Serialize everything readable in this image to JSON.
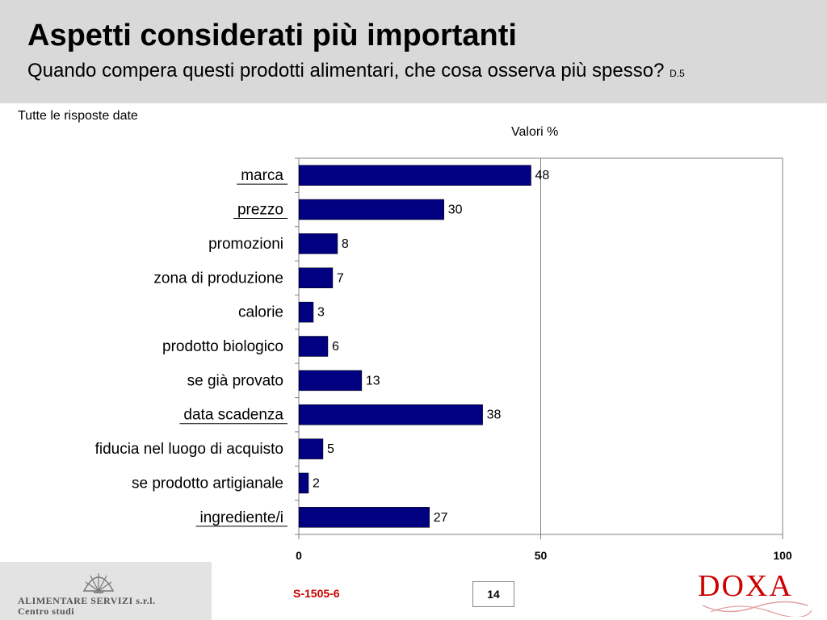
{
  "header": {
    "title": "Aspetti considerati più importanti",
    "subtitle": "Quando compera questi prodotti alimentari, che cosa osserva più spesso?",
    "question_code": "D.5"
  },
  "note": "Tutte le risposte date",
  "unit_label": "Valori %",
  "chart_data": {
    "type": "bar",
    "orientation": "horizontal",
    "categories": [
      "marca",
      "prezzo",
      "promozioni",
      "zona di produzione",
      "calorie",
      "prodotto biologico",
      "se già provato",
      "data scadenza",
      "fiducia nel luogo di acquisto",
      "se prodotto artigianale",
      "ingrediente/i"
    ],
    "underlined_categories": [
      "marca",
      "prezzo",
      "data scadenza",
      "ingrediente/i"
    ],
    "values": [
      48,
      30,
      8,
      7,
      3,
      6,
      13,
      38,
      5,
      2,
      27
    ],
    "xlim": [
      0,
      100
    ],
    "xticks": [
      "0",
      "50",
      "100"
    ],
    "grid": "vertical line at 50",
    "bar_color": "#000080",
    "data_labels": true
  },
  "footer": {
    "company_name": "ALIMENTARE SERVIZI s.r.l.",
    "company_sub": "Centro studi",
    "company_logo_icon": "shell-logo-icon",
    "doc_code": "S-1505-6",
    "page_number": "14",
    "brand": "DOXA",
    "brand_color": "#cc0000"
  }
}
